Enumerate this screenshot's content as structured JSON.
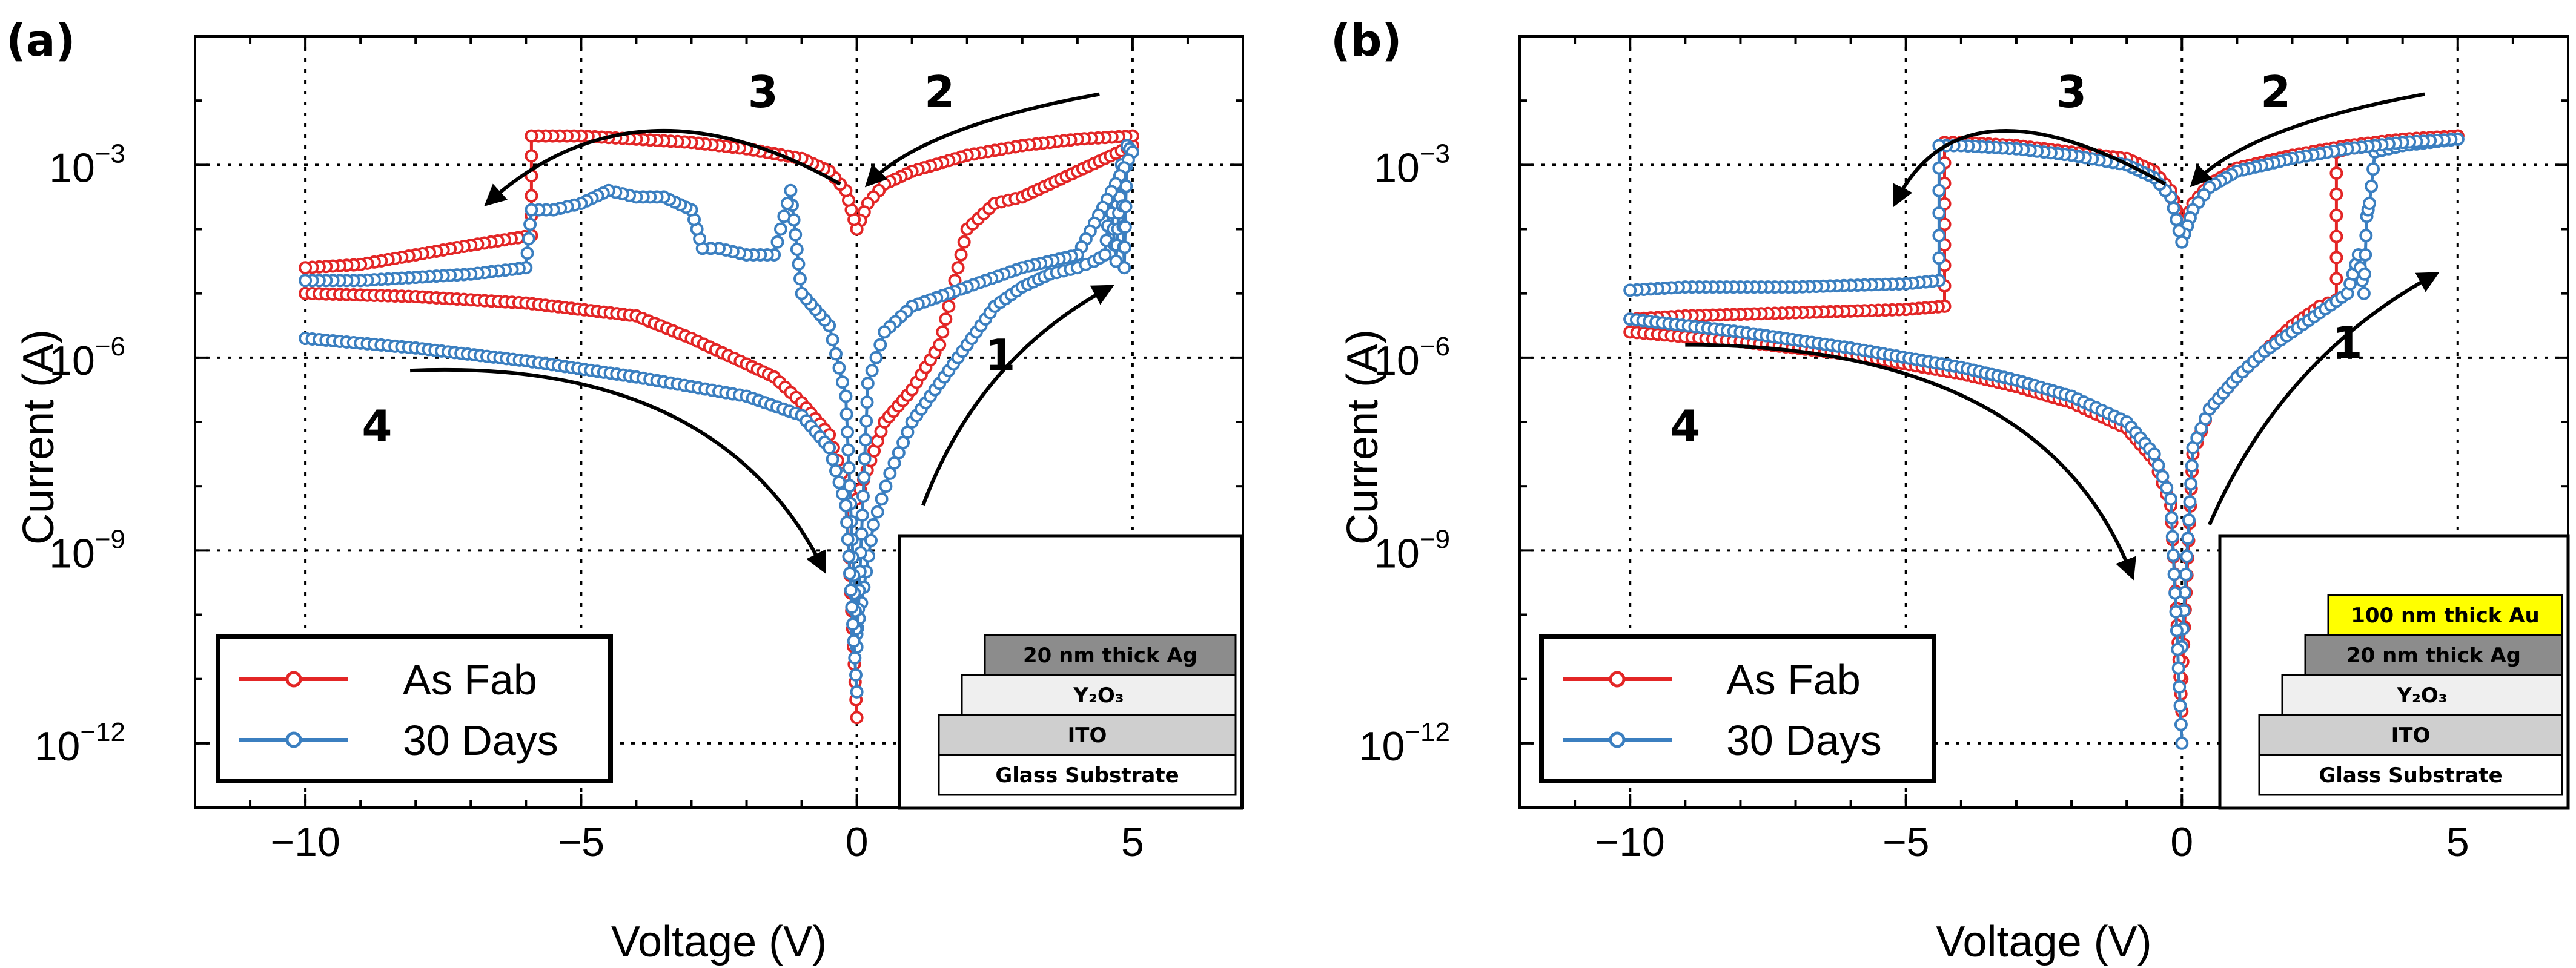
{
  "figure": {
    "background": "#ffffff"
  },
  "colors": {
    "as_fab": "#e32626",
    "days_30": "#3b7fc0",
    "axes": "#000000"
  },
  "chart_data": [
    {
      "panel_label": "(a)",
      "type": "line",
      "title": "",
      "xlabel": "Voltage (V)",
      "ylabel": "Current (A)",
      "xlim": [
        -12,
        7
      ],
      "ylim": [
        -13,
        -1
      ],
      "y_scale": "log",
      "x_ticks": [
        -10,
        -5,
        0,
        5
      ],
      "x_tick_labels": [
        "−10",
        "−5",
        "0",
        "5"
      ],
      "y_ticks": [
        -3,
        -6,
        -9,
        -12
      ],
      "y_tick_labels": [
        {
          "base": "10",
          "exp": "−3"
        },
        {
          "base": "10",
          "exp": "−6"
        },
        {
          "base": "10",
          "exp": "−9"
        },
        {
          "base": "10",
          "exp": "−12"
        }
      ],
      "grid": true,
      "legend": {
        "position": "bottom-left",
        "entries": [
          {
            "name": "As Fab",
            "color": "#e32626"
          },
          {
            "name": "30 Days",
            "color": "#3b7fc0"
          }
        ]
      },
      "annotations": [
        {
          "text": "1",
          "x": 2.6,
          "y": -6.2
        },
        {
          "text": "2",
          "x": 1.5,
          "y": -2.1
        },
        {
          "text": "3",
          "x": -1.7,
          "y": -2.1
        },
        {
          "text": "4",
          "x": -8.7,
          "y": -7.3
        }
      ],
      "arrows": [
        {
          "name": "1",
          "from": [
            1.2,
            -8.3
          ],
          "ctrl": [
            2.2,
            -6.0
          ],
          "to": [
            4.6,
            -4.9
          ]
        },
        {
          "name": "2",
          "from": [
            4.4,
            -1.9
          ],
          "ctrl": [
            1.2,
            -2.4
          ],
          "to": [
            0.2,
            -3.3
          ]
        },
        {
          "name": "3",
          "from": [
            -0.3,
            -3.3
          ],
          "ctrl": [
            -4.0,
            -1.5
          ],
          "to": [
            -6.7,
            -3.6
          ]
        },
        {
          "name": "4",
          "from": [
            -8.1,
            -6.2
          ],
          "ctrl": [
            -2.5,
            -6.0
          ],
          "to": [
            -0.6,
            -9.3
          ]
        }
      ],
      "inset": {
        "position": "bottom-right",
        "layers": [
          {
            "label": "20 nm thick Ag",
            "fill": "#8c8c8c"
          },
          {
            "label": "Y₂O₃",
            "fill": "#efefef"
          },
          {
            "label": "ITO",
            "fill": "#cfcfcf"
          },
          {
            "label": "Glass Substrate",
            "fill": "#ffffff"
          }
        ]
      },
      "series": [
        {
          "name": "As Fab",
          "color": "#e32626",
          "segments": [
            {
              "x": [
                0.0,
                0.5,
                1.0,
                1.5,
                2.0,
                2.5,
                3.0,
                3.5,
                4.0,
                4.5,
                5.0
              ],
              "y": [
                -8.2,
                -7.0,
                -6.5,
                -5.8,
                -4.0,
                -3.6,
                -3.5,
                -3.3,
                -3.1,
                -2.9,
                -2.7
              ]
            },
            {
              "x": [
                5.0,
                4.0,
                3.0,
                2.0,
                1.0,
                0.5,
                0.2,
                0.0
              ],
              "y": [
                -2.55,
                -2.6,
                -2.7,
                -2.85,
                -3.1,
                -3.3,
                -3.6,
                -4.0
              ]
            },
            {
              "x": [
                0.0,
                -0.2,
                -0.5,
                -1.0,
                -2.0,
                -3.0,
                -4.0,
                -5.0,
                -5.9,
                -5.9,
                -7.0,
                -8.0,
                -9.0,
                -10.0
              ],
              "y": [
                -4.0,
                -3.4,
                -3.1,
                -2.9,
                -2.75,
                -2.65,
                -2.6,
                -2.55,
                -2.55,
                -4.1,
                -4.25,
                -4.4,
                -4.55,
                -4.6
              ]
            },
            {
              "x": [
                -10.0,
                -8.0,
                -6.0,
                -4.0,
                -3.0,
                -2.0,
                -1.5,
                -1.0,
                -0.5,
                -0.2,
                0.0
              ],
              "y": [
                -5.0,
                -5.05,
                -5.15,
                -5.35,
                -5.7,
                -6.1,
                -6.3,
                -6.7,
                -7.2,
                -8.0,
                -11.6
              ]
            }
          ]
        },
        {
          "name": "30 Days",
          "color": "#3b7fc0",
          "segments": [
            {
              "x": [
                0.0,
                0.3,
                0.6,
                1.0,
                1.5,
                2.0,
                2.5,
                3.0,
                3.5,
                4.0,
                4.3,
                4.5,
                4.6,
                4.7,
                4.8,
                4.85,
                4.9,
                5.0
              ],
              "y": [
                -10.3,
                -8.6,
                -7.8,
                -7.0,
                -6.4,
                -5.8,
                -5.2,
                -4.9,
                -4.7,
                -4.6,
                -4.5,
                -4.4,
                -3.5,
                -4.5,
                -3.0,
                -4.6,
                -2.7,
                -2.8
              ]
            },
            {
              "x": [
                5.0,
                4.0,
                3.0,
                2.0,
                1.0,
                0.5,
                0.2,
                0.0
              ],
              "y": [
                -2.8,
                -4.4,
                -4.6,
                -4.9,
                -5.2,
                -5.6,
                -6.4,
                -10.5
              ]
            },
            {
              "x": [
                0.0,
                -0.2,
                -0.5,
                -1.0,
                -1.2,
                -1.5,
                -2.0,
                -2.5,
                -2.8,
                -3.0,
                -3.5,
                -4.0,
                -4.5,
                -5.0,
                -5.5,
                -5.9,
                -6.0,
                -7.0,
                -8.0,
                -9.0,
                -10.0
              ],
              "y": [
                -10.5,
                -6.6,
                -5.5,
                -5.0,
                -3.4,
                -4.4,
                -4.4,
                -4.3,
                -4.3,
                -3.7,
                -3.5,
                -3.5,
                -3.4,
                -3.6,
                -3.7,
                -3.7,
                -4.6,
                -4.7,
                -4.75,
                -4.8,
                -4.8
              ]
            },
            {
              "x": [
                -10.0,
                -8.0,
                -6.0,
                -4.0,
                -3.0,
                -2.0,
                -1.0,
                -0.5,
                -0.2,
                0.0
              ],
              "y": [
                -5.7,
                -5.85,
                -6.05,
                -6.3,
                -6.45,
                -6.6,
                -6.9,
                -7.4,
                -8.3,
                -11.2
              ]
            }
          ]
        }
      ]
    },
    {
      "panel_label": "(b)",
      "type": "line",
      "title": "",
      "xlabel": "Voltage (V)",
      "ylabel": "Current (A)",
      "xlim": [
        -12,
        7
      ],
      "ylim": [
        -13,
        -1
      ],
      "y_scale": "log",
      "x_ticks": [
        -10,
        -5,
        0,
        5
      ],
      "x_tick_labels": [
        "−10",
        "−5",
        "0",
        "5"
      ],
      "y_ticks": [
        -3,
        -6,
        -9,
        -12
      ],
      "y_tick_labels": [
        {
          "base": "10",
          "exp": "−3"
        },
        {
          "base": "10",
          "exp": "−6"
        },
        {
          "base": "10",
          "exp": "−9"
        },
        {
          "base": "10",
          "exp": "−12"
        }
      ],
      "grid": true,
      "legend": {
        "position": "bottom-left",
        "entries": [
          {
            "name": "As Fab",
            "color": "#e32626"
          },
          {
            "name": "30 Days",
            "color": "#3b7fc0"
          }
        ]
      },
      "annotations": [
        {
          "text": "1",
          "x": 3.0,
          "y": -6.0
        },
        {
          "text": "2",
          "x": 1.7,
          "y": -2.1
        },
        {
          "text": "3",
          "x": -2.0,
          "y": -2.1
        },
        {
          "text": "4",
          "x": -9.0,
          "y": -7.3
        }
      ],
      "arrows": [
        {
          "name": "1",
          "from": [
            0.5,
            -8.6
          ],
          "ctrl": [
            1.8,
            -6.0
          ],
          "to": [
            4.6,
            -4.7
          ]
        },
        {
          "name": "2",
          "from": [
            4.4,
            -1.9
          ],
          "ctrl": [
            1.2,
            -2.4
          ],
          "to": [
            0.2,
            -3.3
          ]
        },
        {
          "name": "3",
          "from": [
            -0.3,
            -3.3
          ],
          "ctrl": [
            -4.0,
            -1.5
          ],
          "to": [
            -5.2,
            -3.6
          ]
        },
        {
          "name": "4",
          "from": [
            -9.0,
            -5.8
          ],
          "ctrl": [
            -2.5,
            -5.8
          ],
          "to": [
            -0.9,
            -9.4
          ]
        }
      ],
      "inset": {
        "position": "bottom-right",
        "layers": [
          {
            "label": "100 nm thick Au",
            "fill": "#ffff00"
          },
          {
            "label": "20 nm thick Ag",
            "fill": "#8c8c8c"
          },
          {
            "label": "Y₂O₃",
            "fill": "#efefef"
          },
          {
            "label": "ITO",
            "fill": "#cfcfcf"
          },
          {
            "label": "Glass Substrate",
            "fill": "#ffffff"
          }
        ]
      },
      "series": [
        {
          "name": "As Fab",
          "color": "#e32626",
          "segments": [
            {
              "x": [
                0.0,
                0.2,
                0.5,
                1.0,
                1.5,
                2.0,
                2.5,
                2.8,
                2.8,
                3.0,
                4.0,
                5.0
              ],
              "y": [
                -11.0,
                -7.5,
                -6.8,
                -6.3,
                -5.9,
                -5.5,
                -5.2,
                -5.1,
                -2.8,
                -2.75,
                -2.65,
                -2.55
              ]
            },
            {
              "x": [
                5.0,
                4.0,
                3.0,
                2.0,
                1.0,
                0.5,
                0.2,
                0.0
              ],
              "y": [
                -2.55,
                -2.6,
                -2.7,
                -2.85,
                -3.05,
                -3.3,
                -3.6,
                -4.0
              ]
            },
            {
              "x": [
                0.0,
                -0.2,
                -0.5,
                -1.0,
                -2.0,
                -3.0,
                -4.0,
                -4.3,
                -4.3,
                -5.0,
                -7.0,
                -9.0,
                -10.0
              ],
              "y": [
                -4.0,
                -3.4,
                -3.1,
                -2.9,
                -2.8,
                -2.7,
                -2.65,
                -2.65,
                -5.2,
                -5.25,
                -5.3,
                -5.35,
                -5.4
              ]
            },
            {
              "x": [
                -10.0,
                -8.0,
                -6.0,
                -4.0,
                -3.0,
                -2.0,
                -1.0,
                -0.5,
                -0.2,
                0.0
              ],
              "y": [
                -5.6,
                -5.75,
                -5.95,
                -6.25,
                -6.45,
                -6.7,
                -7.1,
                -7.6,
                -8.3,
                -11.5
              ]
            }
          ]
        },
        {
          "name": "30 Days",
          "color": "#3b7fc0",
          "segments": [
            {
              "x": [
                0.0,
                0.2,
                0.5,
                1.0,
                1.5,
                2.0,
                2.5,
                3.0,
                3.2,
                3.3,
                3.35,
                3.4,
                3.5,
                4.0,
                5.0
              ],
              "y": [
                -10.5,
                -7.4,
                -6.8,
                -6.3,
                -5.9,
                -5.6,
                -5.3,
                -5.0,
                -4.4,
                -5.0,
                -3.8,
                -3.6,
                -2.8,
                -2.7,
                -2.6
              ]
            },
            {
              "x": [
                5.0,
                4.0,
                3.0,
                2.0,
                1.0,
                0.5,
                0.2,
                0.0
              ],
              "y": [
                -2.6,
                -2.65,
                -2.75,
                -2.9,
                -3.1,
                -3.35,
                -3.7,
                -4.2
              ]
            },
            {
              "x": [
                0.0,
                -0.2,
                -0.5,
                -1.0,
                -2.0,
                -3.0,
                -4.0,
                -4.4,
                -4.4,
                -5.0,
                -7.0,
                -9.0,
                -10.0
              ],
              "y": [
                -4.2,
                -3.5,
                -3.2,
                -3.0,
                -2.85,
                -2.75,
                -2.7,
                -2.7,
                -4.8,
                -4.85,
                -4.9,
                -4.9,
                -4.95
              ]
            },
            {
              "x": [
                -10.0,
                -8.0,
                -6.0,
                -4.0,
                -3.0,
                -2.0,
                -1.0,
                -0.5,
                -0.2,
                0.0
              ],
              "y": [
                -5.4,
                -5.6,
                -5.85,
                -6.15,
                -6.35,
                -6.6,
                -7.0,
                -7.5,
                -8.2,
                -12.0
              ]
            }
          ]
        }
      ]
    }
  ]
}
